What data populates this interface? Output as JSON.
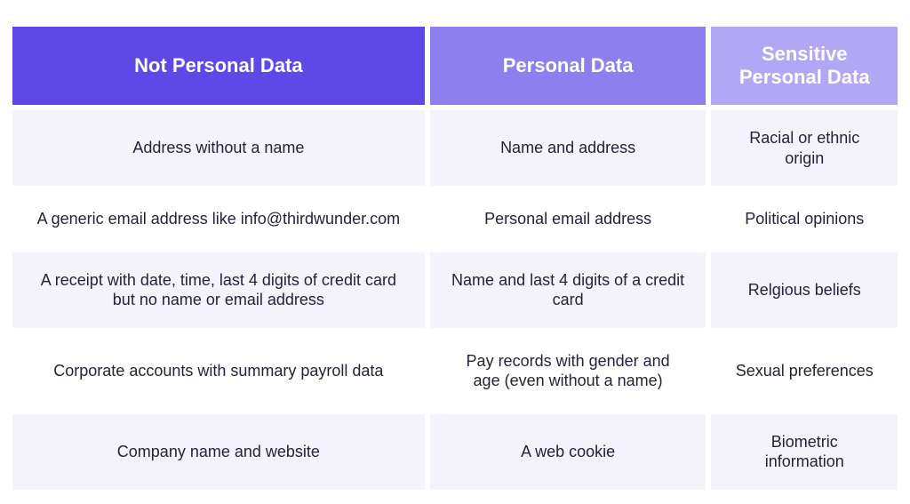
{
  "table": {
    "type": "table",
    "columns": [
      {
        "label": "Not Personal Data",
        "header_bg": "#5e48e8",
        "header_color": "#ffffff"
      },
      {
        "label": "Personal Data",
        "header_bg": "#8e7fef",
        "header_color": "#ffffff"
      },
      {
        "label": "Sensitive Personal Data",
        "header_bg": "#b1a7f4",
        "header_color": "#ffffff"
      }
    ],
    "row_bg_colors": [
      "#f4f2fb",
      "#ffffff"
    ],
    "cell_text_color": "#24233a",
    "header_fontsize": 22,
    "header_fontweight": 800,
    "cell_fontsize": 18,
    "cell_padding_v": 20,
    "cell_padding_h": 24,
    "border_spacing": 6,
    "rows": [
      [
        "Address without a name",
        "Name and address",
        "Racial or ethnic origin"
      ],
      [
        "A generic email address like info@thirdwunder.com",
        "Personal email address",
        "Political opinions"
      ],
      [
        "A receipt with date, time, last 4 digits of credit card but no name or email address",
        "Name and last 4 digits of a credit card",
        "Relgious beliefs"
      ],
      [
        "Corporate accounts with summary payroll data",
        "Pay records with gender and age (even without a name)",
        "Sexual preferences"
      ],
      [
        "Company name and website",
        "A web cookie",
        "Biometric information"
      ]
    ]
  }
}
